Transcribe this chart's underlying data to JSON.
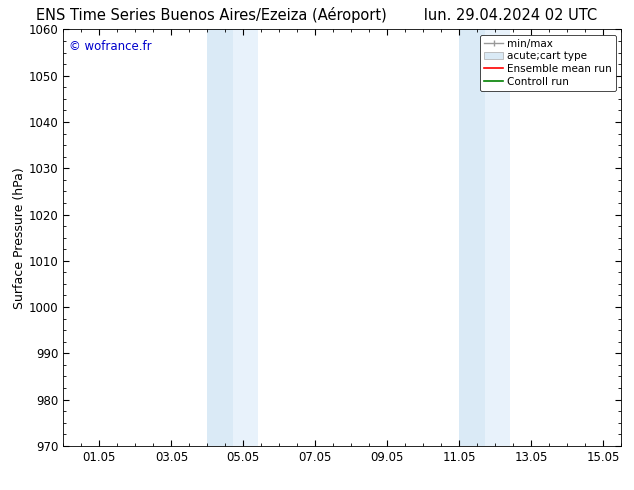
{
  "title_left": "ENS Time Series Buenos Aires/Ezeiza (Aéroport)",
  "title_right": "lun. 29.04.2024 02 UTC",
  "ylabel": "Surface Pressure (hPa)",
  "watermark": "© wofrance.fr",
  "watermark_color": "#0000cc",
  "ylim": [
    970,
    1060
  ],
  "yticks": [
    970,
    980,
    990,
    1000,
    1010,
    1020,
    1030,
    1040,
    1050,
    1060
  ],
  "xtick_labels": [
    "01.05",
    "03.05",
    "05.05",
    "07.05",
    "09.05",
    "11.05",
    "13.05",
    "15.05"
  ],
  "xtick_positions": [
    1,
    3,
    5,
    7,
    9,
    11,
    13,
    15
  ],
  "xlim": [
    0,
    15.5
  ],
  "shade_regions": [
    {
      "x_start": 4.0,
      "x_end": 4.7,
      "color": "#daeaf6"
    },
    {
      "x_start": 4.7,
      "x_end": 5.4,
      "color": "#e8f2fb"
    },
    {
      "x_start": 11.0,
      "x_end": 11.7,
      "color": "#daeaf6"
    },
    {
      "x_start": 11.7,
      "x_end": 12.4,
      "color": "#e8f2fb"
    }
  ],
  "legend_entries": [
    {
      "label": "min/max",
      "color": "#999999",
      "lw": 1.2,
      "style": "solid"
    },
    {
      "label": "acute;cart type",
      "color": "#cccccc",
      "lw": 6,
      "style": "solid"
    },
    {
      "label": "Ensemble mean run",
      "color": "red",
      "lw": 1.2,
      "style": "solid"
    },
    {
      "label": "Controll run",
      "color": "green",
      "lw": 1.2,
      "style": "solid"
    }
  ],
  "bg_color": "#ffffff",
  "plot_bg_color": "#ffffff",
  "title_fontsize": 10.5,
  "tick_fontsize": 8.5,
  "ylabel_fontsize": 9,
  "legend_fontsize": 7.5
}
